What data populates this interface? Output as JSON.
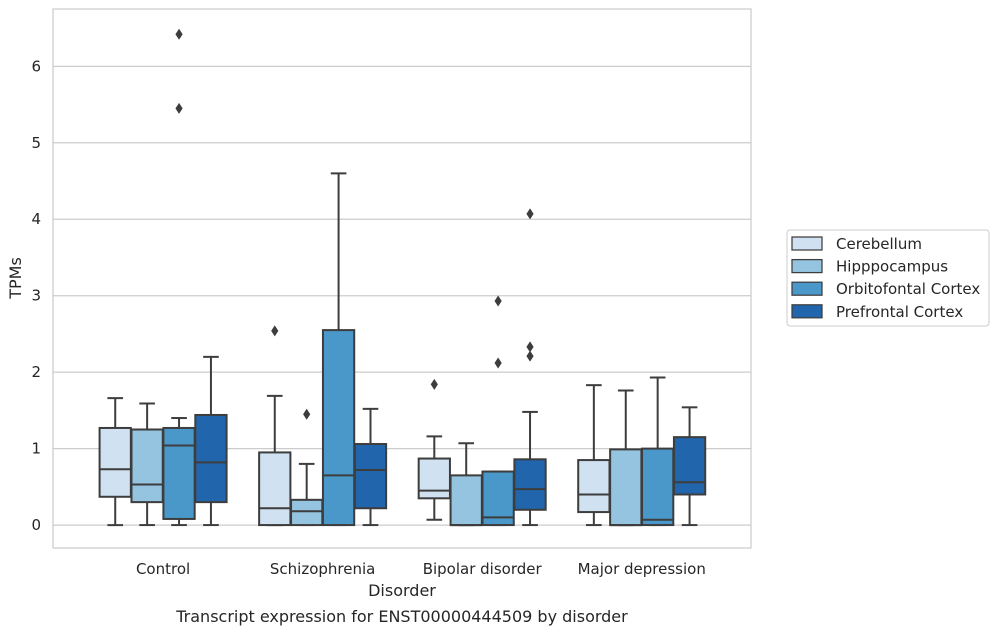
{
  "chart_data": {
    "type": "box",
    "title": "Transcript expression for ENST00000444509 by disorder",
    "xlabel": "Disorder",
    "ylabel": "TPMs",
    "ylim": [
      -0.3,
      6.75
    ],
    "yticks": [
      0,
      1,
      2,
      3,
      4,
      5,
      6
    ],
    "grid": true,
    "legend_position": "right",
    "categories": [
      "Control",
      "Schizophrenia",
      "Bipolar disorder",
      "Major depression"
    ],
    "series": [
      {
        "name": "Cerebellum",
        "color": "#d0e1f2",
        "boxes": [
          {
            "whislo": 0.0,
            "q1": 0.37,
            "med": 0.73,
            "q3": 1.27,
            "whishi": 1.66,
            "fliers": []
          },
          {
            "whislo": 0.0,
            "q1": 0.0,
            "med": 0.22,
            "q3": 0.95,
            "whishi": 1.69,
            "fliers": [
              2.54
            ]
          },
          {
            "whislo": 0.07,
            "q1": 0.35,
            "med": 0.45,
            "q3": 0.87,
            "whishi": 1.16,
            "fliers": [
              1.84
            ]
          },
          {
            "whislo": 0.0,
            "q1": 0.17,
            "med": 0.4,
            "q3": 0.85,
            "whishi": 1.83,
            "fliers": []
          }
        ]
      },
      {
        "name": "Hipppocampus",
        "color": "#94c4df",
        "boxes": [
          {
            "whislo": 0.0,
            "q1": 0.3,
            "med": 0.53,
            "q3": 1.25,
            "whishi": 1.59,
            "fliers": []
          },
          {
            "whislo": 0.0,
            "q1": 0.0,
            "med": 0.18,
            "q3": 0.33,
            "whishi": 0.8,
            "fliers": [
              1.45
            ]
          },
          {
            "whislo": 0.0,
            "q1": 0.0,
            "med": 0.0,
            "q3": 0.65,
            "whishi": 1.07,
            "fliers": []
          },
          {
            "whislo": 0.0,
            "q1": 0.0,
            "med": 0.0,
            "q3": 0.99,
            "whishi": 1.76,
            "fliers": []
          }
        ]
      },
      {
        "name": "Orbitofontal Cortex",
        "color": "#4a98c9",
        "boxes": [
          {
            "whislo": 0.0,
            "q1": 0.08,
            "med": 1.04,
            "q3": 1.27,
            "whishi": 1.4,
            "fliers": [
              5.45,
              6.42
            ]
          },
          {
            "whislo": 0.0,
            "q1": 0.0,
            "med": 0.65,
            "q3": 2.55,
            "whishi": 4.6,
            "fliers": []
          },
          {
            "whislo": 0.0,
            "q1": 0.0,
            "med": 0.1,
            "q3": 0.7,
            "whishi": 0.7,
            "fliers": [
              2.12,
              2.93
            ]
          },
          {
            "whislo": 0.0,
            "q1": 0.0,
            "med": 0.07,
            "q3": 1.0,
            "whishi": 1.93,
            "fliers": []
          }
        ]
      },
      {
        "name": "Prefrontal Cortex",
        "color": "#2166ac",
        "boxes": [
          {
            "whislo": 0.0,
            "q1": 0.3,
            "med": 0.82,
            "q3": 1.44,
            "whishi": 2.2,
            "fliers": []
          },
          {
            "whislo": 0.0,
            "q1": 0.22,
            "med": 0.72,
            "q3": 1.06,
            "whishi": 1.52,
            "fliers": []
          },
          {
            "whislo": 0.0,
            "q1": 0.2,
            "med": 0.47,
            "q3": 0.86,
            "whishi": 1.48,
            "fliers": [
              2.21,
              2.33,
              4.07
            ]
          },
          {
            "whislo": 0.0,
            "q1": 0.4,
            "med": 0.56,
            "q3": 1.15,
            "whishi": 1.54,
            "fliers": []
          }
        ]
      }
    ]
  }
}
